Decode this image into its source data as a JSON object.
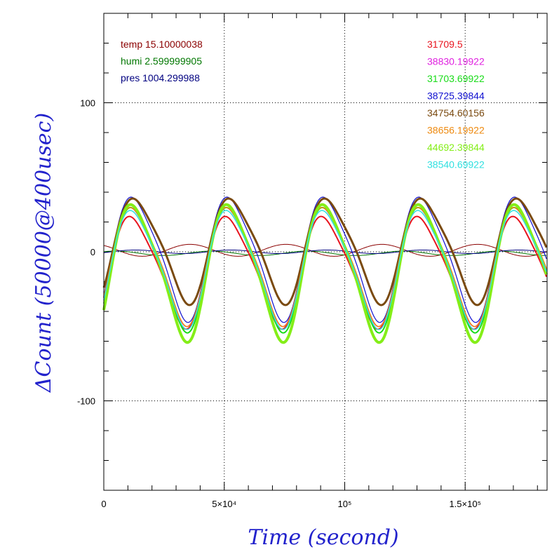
{
  "chart_data": {
    "type": "line",
    "xlabel": "Time (second)",
    "ylabel": "ΔCount (50000@400usec)",
    "xlim": [
      0,
      184000
    ],
    "ylim": [
      -160,
      160
    ],
    "x_ticks": [
      {
        "value": 0,
        "label": "0"
      },
      {
        "value": 50000,
        "label": "5×10⁴"
      },
      {
        "value": 100000,
        "label": "10⁵"
      },
      {
        "value": 150000,
        "label": "1.5×10⁵"
      }
    ],
    "y_ticks": [
      {
        "value": 100,
        "label": "100"
      },
      {
        "value": 0,
        "label": "0"
      },
      {
        "value": -100,
        "label": "-100"
      }
    ],
    "grid": true,
    "env_legend": [
      {
        "label": "temp 15.10000038",
        "color": "#8b0000"
      },
      {
        "label": "humi 2.599999905",
        "color": "#007700"
      },
      {
        "label": "pres 1004.299988",
        "color": "#000080"
      }
    ],
    "series": [
      {
        "name": "31709.5",
        "color": "#e8141e",
        "amp": 36,
        "offset": -12,
        "phase": 0.1,
        "width": 2
      },
      {
        "name": "38830.19922",
        "color": "#e020e0",
        "amp": 38,
        "offset": -8,
        "phase": 0.06,
        "width": 1.5
      },
      {
        "name": "31703.69922",
        "color": "#19dc19",
        "amp": 40,
        "offset": -10,
        "phase": 0.02,
        "width": 2
      },
      {
        "name": "38725.39844",
        "color": "#1010d0",
        "amp": 40,
        "offset": -3,
        "phase": -0.02,
        "width": 1.2
      },
      {
        "name": "34754.60156",
        "color": "#7a4a10",
        "amp": 34,
        "offset": 2,
        "phase": -0.12,
        "width": 3
      },
      {
        "name": "38656.19922",
        "color": "#ee8a10",
        "amp": 38,
        "offset": -8,
        "phase": 0.04,
        "width": 1.5
      },
      {
        "name": "44692.39844",
        "color": "#84ee18",
        "amp": 44,
        "offset": -12,
        "phase": 0.02,
        "width": 4
      },
      {
        "name": "38540.69922",
        "color": "#30e0e0",
        "amp": 38,
        "offset": -10,
        "phase": 0.04,
        "width": 1.5
      }
    ],
    "env_series": [
      {
        "name": "temp",
        "color": "#8b0000",
        "amp": 4,
        "offset": 1,
        "phase": 2.2
      },
      {
        "name": "humi",
        "color": "#007700",
        "amp": 1.5,
        "offset": -1,
        "phase": 0.8
      },
      {
        "name": "pres",
        "color": "#000080",
        "amp": 1.2,
        "offset": 0,
        "phase": -0.5
      }
    ],
    "period_seconds": 39800
  }
}
